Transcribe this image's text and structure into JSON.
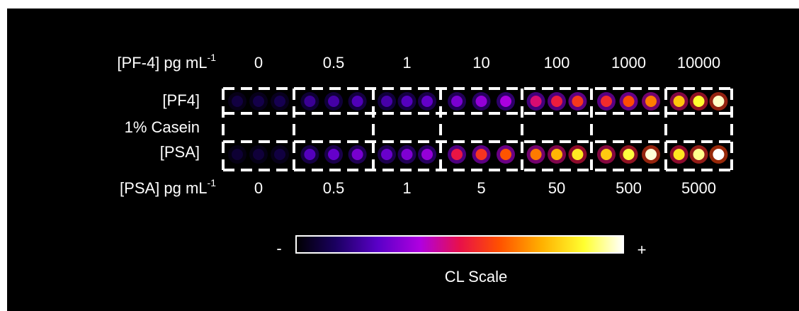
{
  "top_axis": {
    "label": "[PF-4] pg mL",
    "label_sup": "-1",
    "columns": [
      "0",
      "0.5",
      "1",
      "10",
      "100",
      "1000",
      "10000"
    ]
  },
  "rows": [
    "[PF4]",
    "1% Casein",
    "[PSA]"
  ],
  "bottom_axis": {
    "label": "[PSA] pg mL",
    "label_sup": "-1",
    "columns": [
      "0",
      "0.5",
      "1",
      "5",
      "50",
      "500",
      "5000"
    ]
  },
  "scale": {
    "min_label": "-",
    "max_label": "+",
    "title": "CL Scale"
  }
}
